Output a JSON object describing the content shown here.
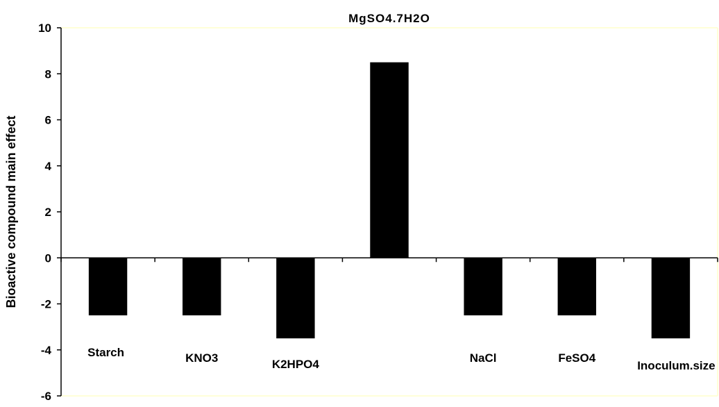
{
  "chart_data": {
    "type": "bar",
    "title": "",
    "xlabel": "",
    "ylabel": "Bioactive compound main effect",
    "ylim": [
      -6,
      10
    ],
    "yticks": [
      -6,
      -4,
      -2,
      0,
      2,
      4,
      6,
      8,
      10
    ],
    "grid": false,
    "legend": "none",
    "categories": [
      "Starch",
      "KNO3",
      "K2HPO4",
      "MgSO4.7H2O",
      "NaCl",
      "FeSO4",
      "Inoculum.size"
    ],
    "values": [
      -2.5,
      -2.5,
      -3.5,
      8.5,
      -2.5,
      -2.5,
      -3.5
    ],
    "colors": {
      "bar": "#000000",
      "plot_border": "#ffffcc",
      "axis": "#000000"
    }
  }
}
